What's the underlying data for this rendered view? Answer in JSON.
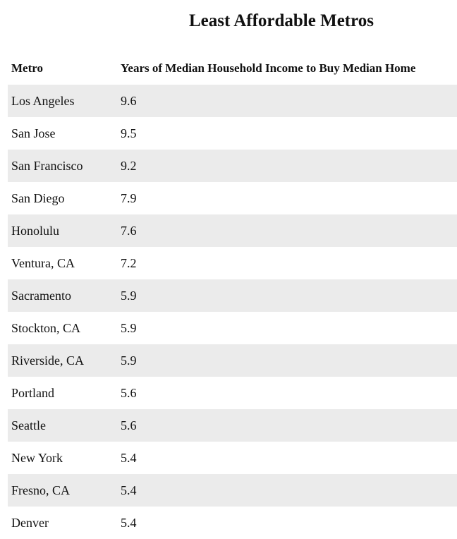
{
  "header": {
    "title": "Least Affordable Metros"
  },
  "table": {
    "columns": [
      "Metro",
      "Years of Median Household Income to Buy Median Home"
    ],
    "rows": [
      [
        "Los Angeles",
        9.6
      ],
      [
        "San Jose",
        9.5
      ],
      [
        "San Francisco",
        9.2
      ],
      [
        "San Diego",
        7.9
      ],
      [
        "Honolulu",
        7.6
      ],
      [
        "Ventura, CA",
        7.2
      ],
      [
        "Sacramento",
        5.9
      ],
      [
        "Stockton, CA",
        5.9
      ],
      [
        "Riverside, CA",
        5.9
      ],
      [
        "Portland",
        5.6
      ],
      [
        "Seattle",
        5.6
      ],
      [
        "New York",
        5.4
      ],
      [
        "Fresno, CA",
        5.4
      ],
      [
        "Denver",
        5.4
      ]
    ]
  }
}
